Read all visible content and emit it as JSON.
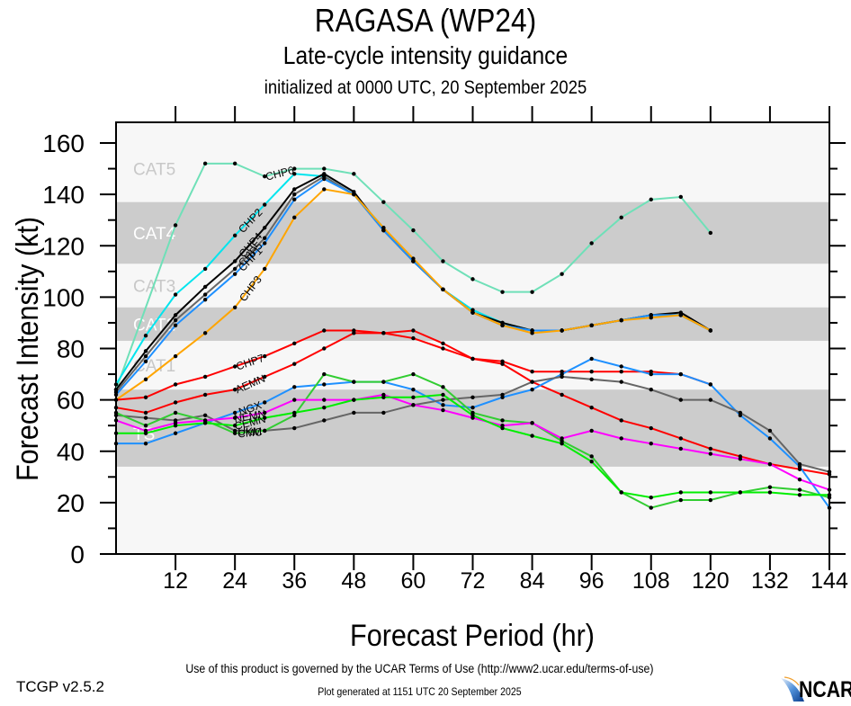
{
  "chart_data": {
    "type": "line",
    "title": "RAGASA (WP24)",
    "subtitle": "Late-cycle intensity guidance",
    "initialized": "initialized at 0000 UTC, 20 September 2025",
    "xlabel": "Forecast Period (hr)",
    "ylabel": "Forecast Intensity (kt)",
    "xlim": [
      0,
      144
    ],
    "ylim": [
      0,
      160
    ],
    "x_ticks": [
      12,
      24,
      36,
      48,
      60,
      72,
      84,
      96,
      108,
      120,
      132,
      144
    ],
    "y_ticks": [
      0,
      20,
      40,
      60,
      80,
      100,
      120,
      140,
      160
    ],
    "category_bands": [
      {
        "label": "TS",
        "min": 34,
        "max": 63,
        "shaded": true
      },
      {
        "label": "CAT1",
        "min": 64,
        "max": 82,
        "shaded": false
      },
      {
        "label": "CAT2",
        "min": 83,
        "max": 95,
        "shaded": true
      },
      {
        "label": "CAT3",
        "min": 96,
        "max": 112,
        "shaded": false
      },
      {
        "label": "CAT4",
        "min": 113,
        "max": 136,
        "shaded": true
      },
      {
        "label": "CAT5",
        "min": 137,
        "max": 160,
        "shaded": false
      }
    ],
    "series": [
      {
        "name": "CHP6",
        "color": "#6fe0b8",
        "x": [
          0,
          12,
          18,
          24,
          30,
          36,
          42,
          48,
          54,
          60,
          66,
          72,
          78,
          84,
          90,
          96,
          102,
          108,
          114,
          120
        ],
        "values": [
          64,
          128,
          152,
          152,
          147,
          150,
          150,
          148,
          137,
          126,
          114,
          107,
          102,
          102,
          109,
          121,
          131,
          138,
          139,
          125
        ]
      },
      {
        "name": "CHP2",
        "color": "#00e5ee",
        "x": [
          0,
          6,
          12,
          18,
          24,
          30,
          36,
          42,
          48,
          54,
          60,
          66,
          72,
          78,
          84,
          90,
          96,
          102,
          108,
          114,
          120
        ],
        "values": [
          66,
          85,
          101,
          111,
          124,
          136,
          148,
          147,
          140,
          127,
          114,
          103,
          95,
          90,
          87,
          87,
          89,
          91,
          93,
          93,
          87
        ]
      },
      {
        "name": "CHP4",
        "color": "#000000",
        "x": [
          0,
          6,
          12,
          18,
          24,
          30,
          36,
          42,
          48,
          54,
          60,
          66,
          72,
          78,
          84,
          90,
          96,
          102,
          108,
          114,
          120
        ],
        "values": [
          64,
          79,
          93,
          104,
          114,
          127,
          142,
          148,
          141,
          126,
          114,
          103,
          94,
          90,
          87,
          87,
          89,
          91,
          93,
          94,
          87
        ]
      },
      {
        "name": "CHP5",
        "color": "#666666",
        "x": [
          0,
          6,
          12,
          18,
          24,
          30,
          36,
          42,
          48,
          54,
          60,
          66,
          72,
          78,
          84,
          90,
          96,
          102,
          108,
          114,
          120
        ],
        "values": [
          63,
          77,
          91,
          101,
          111,
          123,
          140,
          147,
          140,
          126,
          114,
          103,
          94,
          89,
          87,
          87,
          89,
          91,
          93,
          93,
          87
        ]
      },
      {
        "name": "CHP1",
        "color": "#1e90ff",
        "x": [
          0,
          6,
          12,
          18,
          24,
          30,
          36,
          42,
          48,
          54,
          60,
          66,
          72,
          78,
          84,
          90,
          96,
          102,
          108,
          114,
          120
        ],
        "values": [
          62,
          75,
          89,
          99,
          109,
          121,
          138,
          146,
          140,
          126,
          114,
          103,
          94,
          89,
          87,
          87,
          89,
          91,
          93,
          93,
          87
        ]
      },
      {
        "name": "CHP3",
        "color": "#ffa500",
        "x": [
          0,
          6,
          12,
          18,
          24,
          30,
          36,
          42,
          48,
          54,
          60,
          66,
          72,
          78,
          84,
          90,
          96,
          102,
          108,
          114,
          120
        ],
        "values": [
          60,
          68,
          77,
          86,
          96,
          111,
          131,
          142,
          140,
          127,
          115,
          103,
          94,
          89,
          86,
          87,
          89,
          91,
          92,
          93,
          87
        ]
      },
      {
        "name": "CHP7",
        "color": "#ff0000",
        "x": [
          0,
          6,
          12,
          18,
          24,
          30,
          36,
          42,
          48,
          54,
          60,
          66,
          72,
          78,
          84,
          90,
          96,
          102,
          108,
          114,
          120
        ],
        "values": [
          60,
          61,
          66,
          69,
          73,
          77,
          82,
          87,
          87,
          86,
          87,
          82,
          76,
          75,
          71,
          71,
          71,
          71,
          71,
          70,
          66
        ]
      },
      {
        "name": "AEMN",
        "color": "#ff0000",
        "x": [
          0,
          6,
          12,
          18,
          24,
          30,
          36,
          42,
          48,
          54,
          60,
          66,
          72,
          78,
          84,
          90,
          96,
          102,
          108,
          114,
          120,
          126,
          132,
          138,
          144
        ],
        "values": [
          57,
          55,
          59,
          62,
          64,
          69,
          74,
          80,
          86,
          86,
          84,
          80,
          76,
          74,
          67,
          62,
          57,
          52,
          49,
          45,
          41,
          38,
          35,
          33,
          31
        ]
      },
      {
        "name": "NGX",
        "color": "#1e90ff",
        "x": [
          0,
          6,
          12,
          18,
          24,
          30,
          36,
          42,
          48,
          54,
          60,
          66,
          72,
          78,
          84,
          90,
          96,
          102,
          108,
          114,
          120,
          126,
          132,
          138,
          144
        ],
        "values": [
          43,
          43,
          47,
          51,
          55,
          59,
          65,
          66,
          67,
          67,
          64,
          58,
          57,
          61,
          64,
          70,
          76,
          73,
          70,
          70,
          66,
          54,
          45,
          34,
          18
        ]
      },
      {
        "name": "UKM",
        "color": "#666666",
        "x": [
          0,
          6,
          12,
          18,
          24,
          30,
          36,
          42,
          48,
          54,
          60,
          66,
          72,
          78,
          84,
          90,
          96,
          102,
          108,
          114,
          120,
          126,
          132,
          138,
          144
        ],
        "values": [
          54,
          53,
          52,
          54,
          48,
          48,
          49,
          52,
          55,
          55,
          58,
          60,
          61,
          62,
          67,
          69,
          68,
          67,
          64,
          60,
          60,
          55,
          48,
          35,
          32
        ]
      },
      {
        "name": "CMC",
        "color": "#32cd32",
        "x": [
          0,
          6,
          12,
          18,
          24,
          30,
          36,
          42,
          48,
          54,
          60,
          66,
          72,
          78,
          84,
          90,
          96,
          102,
          108,
          114,
          120,
          126,
          132,
          138,
          144
        ],
        "values": [
          55,
          50,
          55,
          52,
          47,
          48,
          54,
          70,
          67,
          67,
          70,
          65,
          55,
          52,
          51,
          44,
          38,
          24,
          18,
          21,
          21,
          24,
          26,
          25,
          22
        ]
      },
      {
        "name": "NEMN",
        "color": "#ff00ff",
        "x": [
          0,
          6,
          12,
          18,
          24,
          30,
          36,
          42,
          48,
          54,
          60,
          66,
          72,
          78,
          84,
          90,
          96,
          102,
          108,
          114,
          120,
          126,
          132,
          138,
          144
        ],
        "values": [
          52,
          48,
          51,
          52,
          53,
          55,
          60,
          60,
          60,
          62,
          58,
          56,
          53,
          50,
          51,
          45,
          48,
          45,
          43,
          41,
          39,
          37,
          35,
          29,
          25
        ]
      },
      {
        "name": "CEMN",
        "color": "#00ee00",
        "x": [
          0,
          6,
          12,
          18,
          24,
          30,
          36,
          42,
          48,
          54,
          60,
          66,
          72,
          78,
          84,
          90,
          96,
          102,
          108,
          114,
          120,
          126,
          132,
          138,
          144
        ],
        "values": [
          47,
          47,
          50,
          51,
          50,
          53,
          55,
          57,
          60,
          61,
          61,
          62,
          54,
          49,
          46,
          43,
          36,
          24,
          22,
          24,
          24,
          24,
          24,
          23,
          23
        ]
      }
    ]
  },
  "footer": {
    "version": "TCGP v2.5.2",
    "terms": "Use of this product is governed by the UCAR Terms of Use (http://www2.ucar.edu/terms-of-use)",
    "generated": "Plot generated at 1151 UTC   20 September 2025",
    "logo": "NCAR"
  }
}
